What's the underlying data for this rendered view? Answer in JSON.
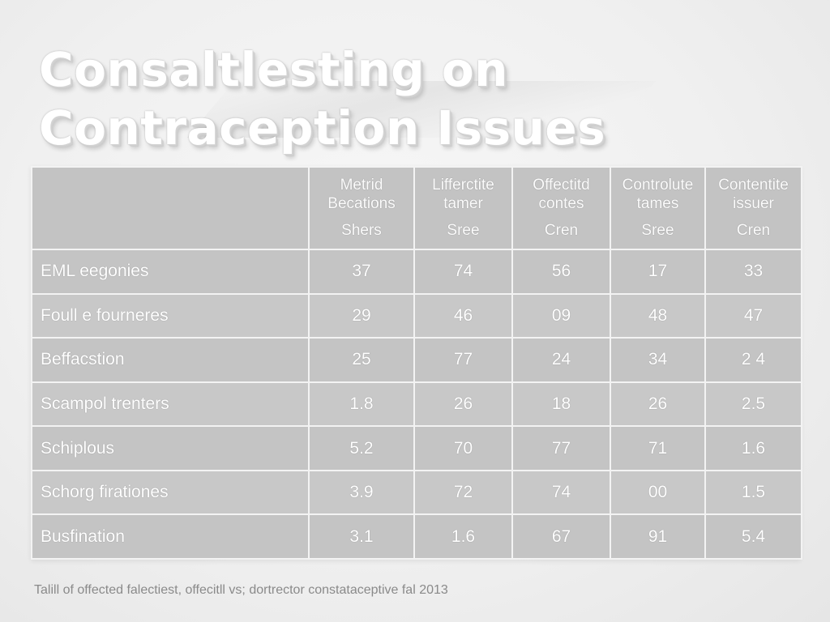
{
  "title": {
    "line1": "Consaltlesting on",
    "line2": "Contraception Issues"
  },
  "table": {
    "columns": [
      {
        "main": "",
        "sub": ""
      },
      {
        "main": "Metrid\nBecations",
        "sub": "Shers"
      },
      {
        "main": "Lifferctite\ntamer",
        "sub": "Sree"
      },
      {
        "main": "Offectitd\ncontes",
        "sub": "Cren"
      },
      {
        "main": "Controlute\ntames",
        "sub": "Sree"
      },
      {
        "main": "Contentite\nissuer",
        "sub": "Cren"
      }
    ],
    "rows": [
      {
        "label": "EML eegonies",
        "values": [
          "37",
          "74",
          "56",
          "17",
          "33"
        ]
      },
      {
        "label": "Foull e fourneres",
        "values": [
          "29",
          "46",
          "09",
          "48",
          "47"
        ]
      },
      {
        "label": "Beffacstion",
        "values": [
          "25",
          "77",
          "24",
          "34",
          "2 4"
        ]
      },
      {
        "label": "Scampol trenters",
        "values": [
          "1.8",
          "26",
          "18",
          "26",
          "2.5"
        ]
      },
      {
        "label": "Schiplous",
        "values": [
          "5.2",
          "70",
          "77",
          "71",
          "1.6"
        ]
      },
      {
        "label": "Schorg firationes",
        "values": [
          "3.9",
          "72",
          "74",
          "00",
          "1.5"
        ]
      },
      {
        "label": "Busfination",
        "values": [
          "3.1",
          "1.6",
          "67",
          "91",
          "5.4"
        ]
      }
    ]
  },
  "caption": "Talill of offected falectiest, offecitll vs; dortrector constataceptive fal 2013"
}
